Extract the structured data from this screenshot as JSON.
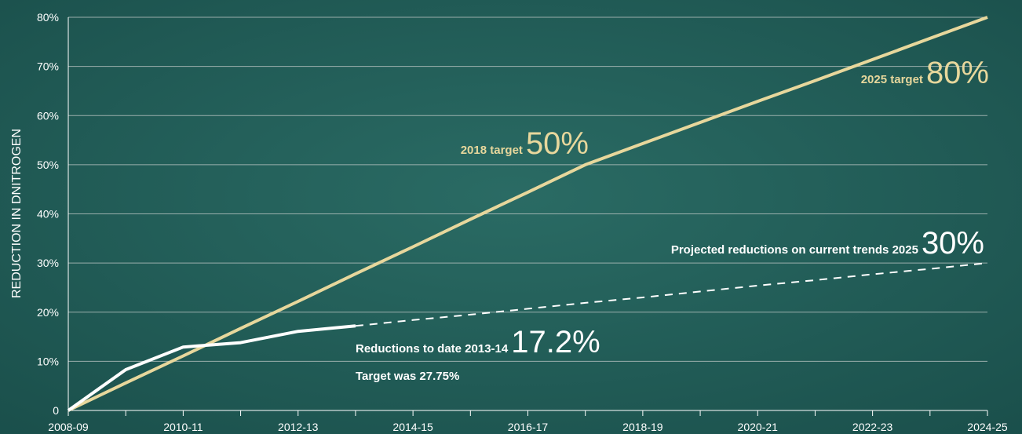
{
  "chart_data": {
    "type": "line",
    "y_label": "REDUCTION IN DNITROGEN",
    "categories": [
      "2008-09",
      null,
      "2010-11",
      null,
      "2012-13",
      null,
      "2014-15",
      null,
      "2016-17",
      null,
      "2018-19",
      null,
      "2020-21",
      null,
      "2022-23",
      null,
      "2024-25"
    ],
    "series": [
      {
        "color": "#e7d79c",
        "style": "solid",
        "values": [
          0,
          5.6,
          11.1,
          16.7,
          22.2,
          27.8,
          33.3,
          38.9,
          44.4,
          50,
          54.3,
          58.6,
          62.9,
          67.1,
          71.4,
          75.7,
          80
        ]
      },
      {
        "color": "#ffffff",
        "style": "solid",
        "values": [
          0,
          8.3,
          12.9,
          13.8,
          16.1,
          17.2,
          null,
          null,
          null,
          null,
          null,
          null,
          null,
          null,
          null,
          null,
          null
        ]
      },
      {
        "color": "#ffffff",
        "style": "dashed",
        "values": [
          null,
          null,
          null,
          null,
          null,
          17.2,
          18.4,
          19.5,
          20.7,
          21.9,
          23.0,
          24.2,
          25.4,
          26.5,
          27.7,
          28.8,
          30
        ]
      }
    ],
    "ylim": [
      0,
      80
    ],
    "yticks": [
      0,
      {
        "value": 10,
        "label": "10%"
      },
      {
        "value": 20,
        "label": "20%"
      },
      {
        "value": 30,
        "label": "30%"
      },
      {
        "value": 40,
        "label": "40%"
      },
      {
        "value": 50,
        "label": "50%"
      },
      {
        "value": 60,
        "label": "60%"
      },
      {
        "value": 70,
        "label": "70%"
      },
      {
        "value": 80,
        "label": "80%"
      }
    ],
    "grid": true,
    "annotations": [
      {
        "text": "2025 target",
        "value_label": "80%",
        "color": "#e7d79c"
      },
      {
        "text": "2018 target",
        "value_label": "50%",
        "color": "#e7d79c"
      },
      {
        "text": "Projected reductions on current trends 2025",
        "value_label": "30%",
        "color": "#ffffff"
      },
      {
        "text": "Reductions to date 2013-14",
        "value_label": "17.2%",
        "color": "#ffffff"
      },
      {
        "text": "Target was 27.75%",
        "color": "#ffffff"
      }
    ]
  }
}
